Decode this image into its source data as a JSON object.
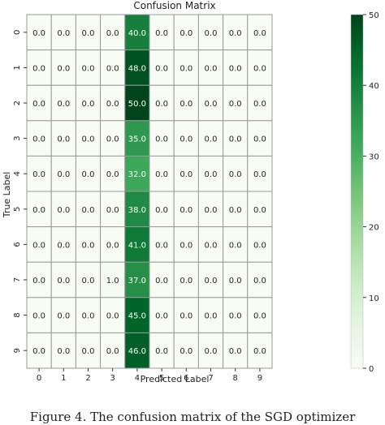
{
  "chart_data": {
    "type": "heatmap",
    "title": "Confusion Matrix",
    "xlabel": "Predicted Label",
    "ylabel": "True Label",
    "x_categories": [
      "0",
      "1",
      "2",
      "3",
      "4",
      "5",
      "6",
      "7",
      "8",
      "9"
    ],
    "y_categories": [
      "0",
      "1",
      "2",
      "3",
      "4",
      "5",
      "6",
      "7",
      "8",
      "9"
    ],
    "values": [
      [
        0,
        0,
        0,
        0,
        40,
        0,
        0,
        0,
        0,
        0
      ],
      [
        0,
        0,
        0,
        0,
        48,
        0,
        0,
        0,
        0,
        0
      ],
      [
        0,
        0,
        0,
        0,
        50,
        0,
        0,
        0,
        0,
        0
      ],
      [
        0,
        0,
        0,
        0,
        35,
        0,
        0,
        0,
        0,
        0
      ],
      [
        0,
        0,
        0,
        0,
        32,
        0,
        0,
        0,
        0,
        0
      ],
      [
        0,
        0,
        0,
        0,
        38,
        0,
        0,
        0,
        0,
        0
      ],
      [
        0,
        0,
        0,
        0,
        41,
        0,
        0,
        0,
        0,
        0
      ],
      [
        0,
        0,
        0,
        1,
        37,
        0,
        0,
        0,
        0,
        0
      ],
      [
        0,
        0,
        0,
        0,
        45,
        0,
        0,
        0,
        0,
        0
      ],
      [
        0,
        0,
        0,
        0,
        46,
        0,
        0,
        0,
        0,
        0
      ]
    ],
    "value_format": "0.0",
    "colormap": "Greens",
    "colorbar": {
      "min": 0,
      "max": 50,
      "ticks": [
        0,
        10,
        20,
        30,
        40,
        50
      ]
    }
  },
  "caption": "Figure 4.  The confusion matrix of the SGD optimizer"
}
